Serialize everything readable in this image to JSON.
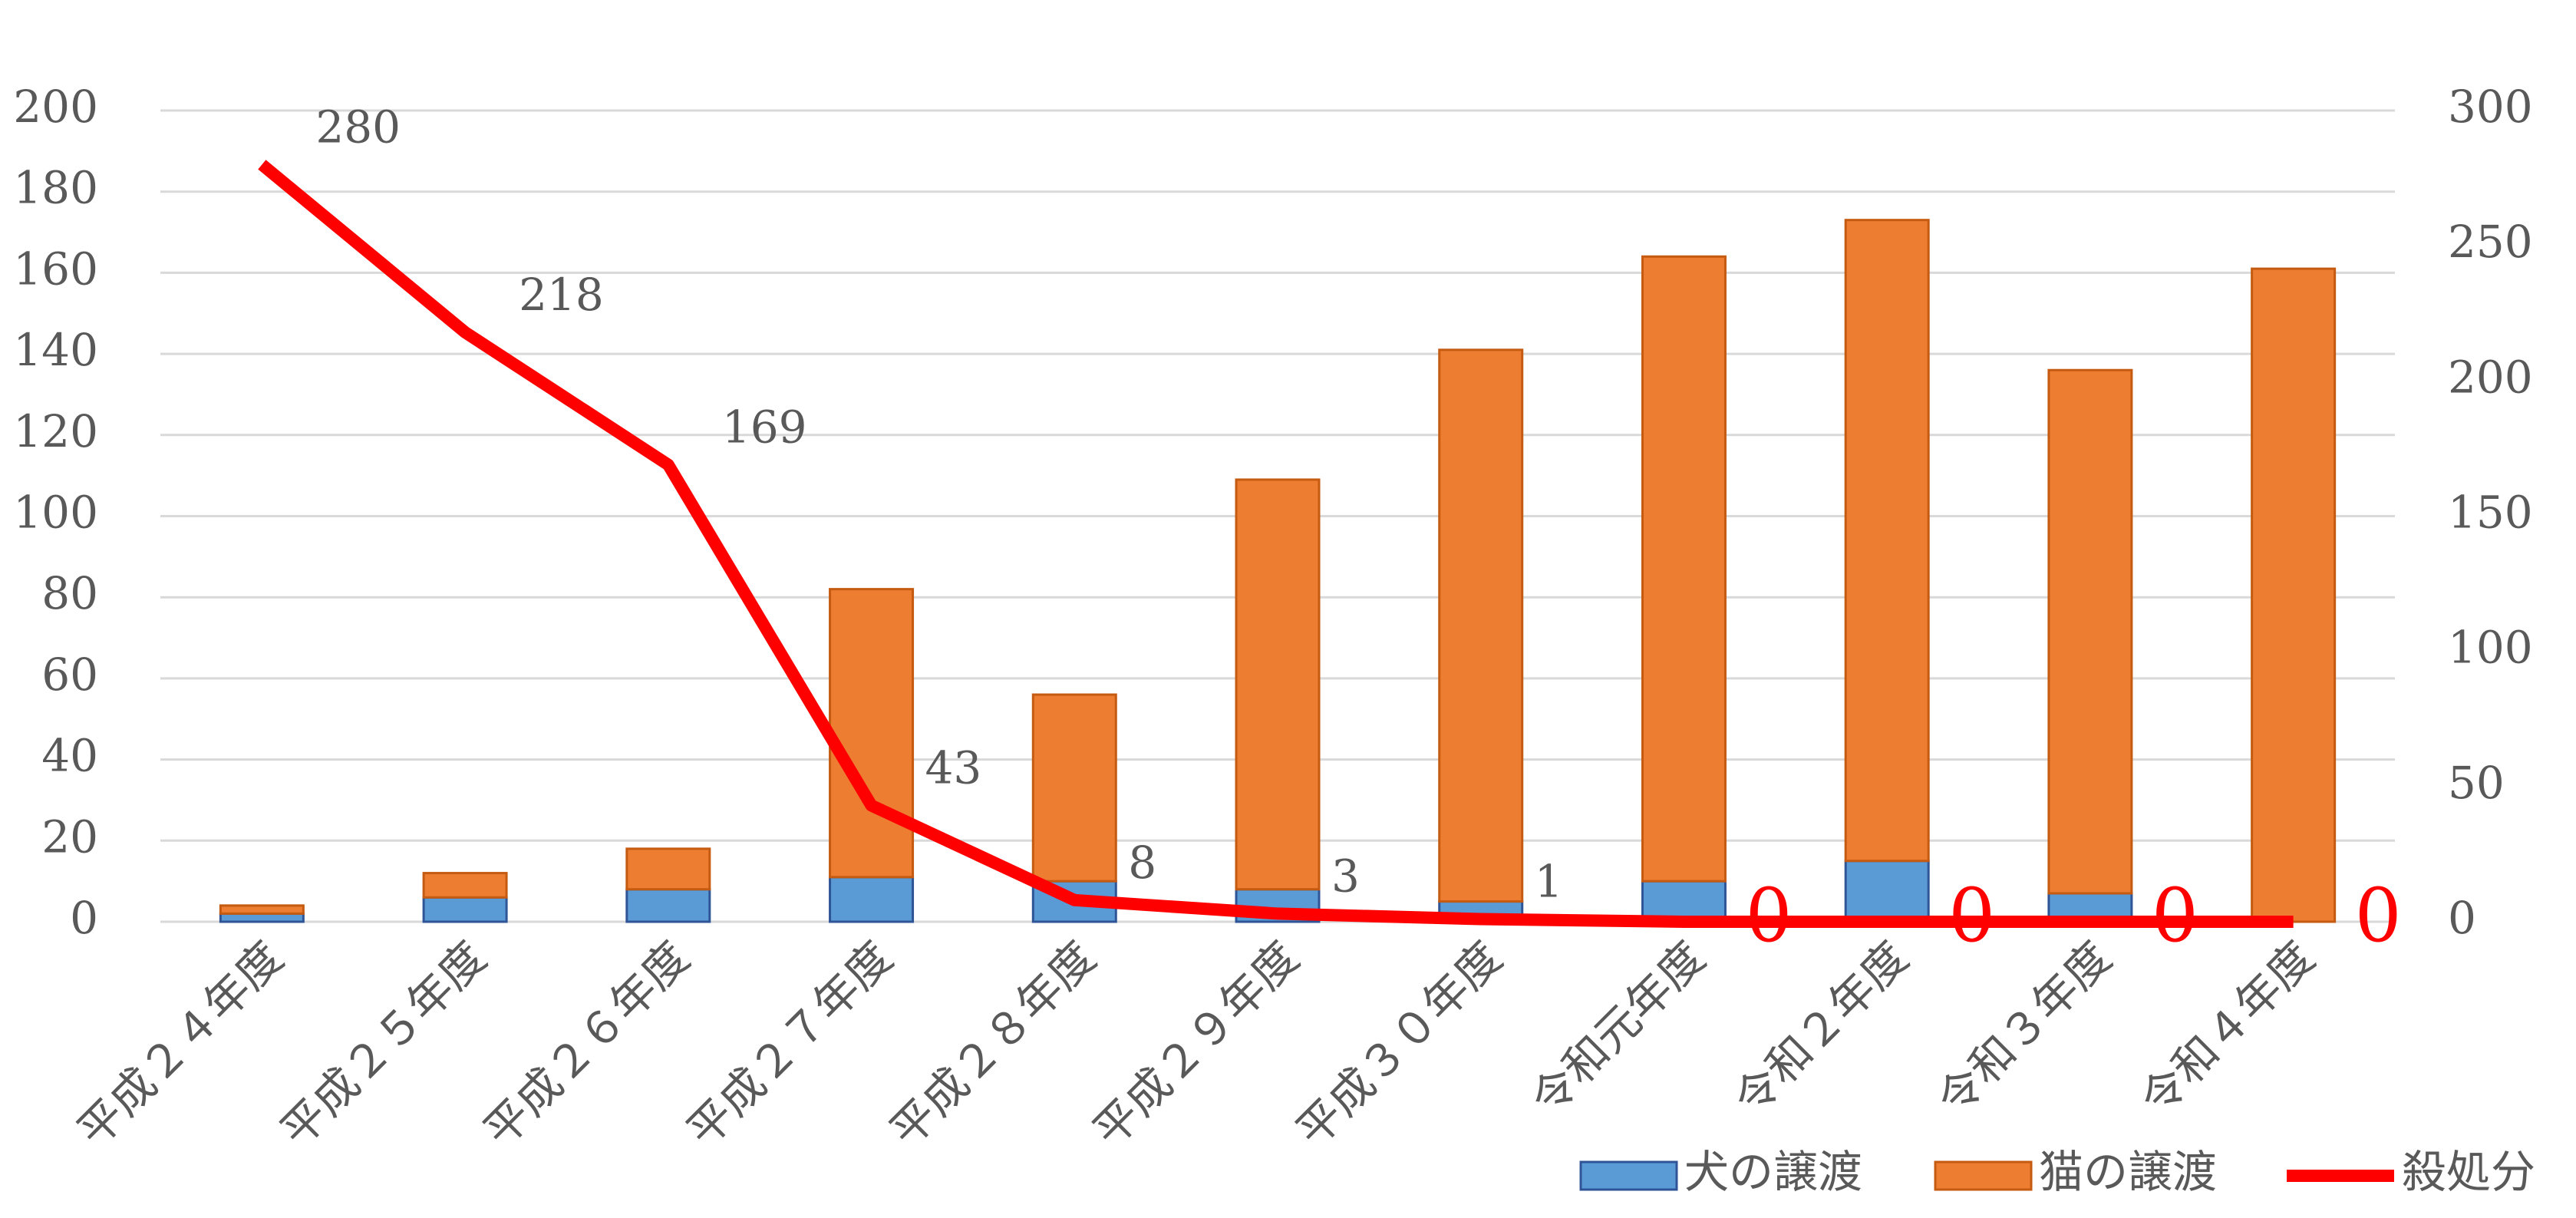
{
  "chart_data": {
    "type": "bar",
    "categories": [
      "平成２４年度",
      "平成２５年度",
      "平成２６年度",
      "平成２７年度",
      "平成２８年度",
      "平成２９年度",
      "平成３０年度",
      "令和元年度",
      "令和２年度",
      "令和３年度",
      "令和４年度"
    ],
    "series": [
      {
        "name": "犬の譲渡",
        "color": "#5b9bd5",
        "stroke": "#2f5597",
        "type": "bar",
        "stacked": true,
        "values": [
          2,
          6,
          8,
          11,
          10,
          8,
          5,
          10,
          15,
          7,
          0
        ]
      },
      {
        "name": "猫の譲渡",
        "color": "#ed7d31",
        "stroke": "#c55a11",
        "type": "bar",
        "stacked": true,
        "values": [
          2,
          6,
          10,
          71,
          46,
          101,
          136,
          154,
          158,
          129,
          161
        ]
      },
      {
        "name": "殺処分",
        "color": "#ff0000",
        "type": "line",
        "axis": "y2",
        "values": [
          280,
          218,
          169,
          43,
          8,
          3,
          1,
          0,
          0,
          0,
          0
        ]
      }
    ],
    "ylim": [
      0,
      200
    ],
    "yticks": [
      0,
      20,
      40,
      60,
      80,
      100,
      120,
      140,
      160,
      180,
      200
    ],
    "y2lim": [
      0,
      300
    ],
    "y2ticks": [
      0,
      50,
      100,
      150,
      200,
      250,
      300
    ],
    "grid": true,
    "legend": "bottom-right"
  }
}
